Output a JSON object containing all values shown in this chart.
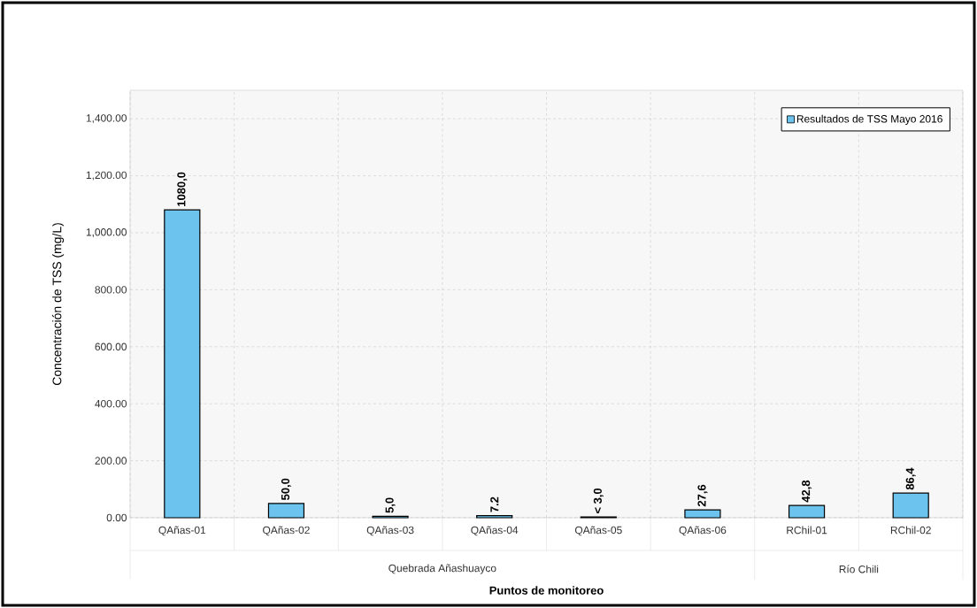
{
  "chart_data": {
    "type": "bar",
    "ylabel": "Concentración de TSS (mg/L)",
    "xlabel": "Puntos de monitoreo",
    "categories": [
      "QAñas-01",
      "QAñas-02",
      "QAñas-03",
      "QAñas-04",
      "QAñas-05",
      "QAñas-06",
      "RChil-01",
      "RChil-02"
    ],
    "series": [
      {
        "name": "Resultados de TSS Mayo 2016",
        "color": "#6cc4ee",
        "values": [
          1080,
          50,
          5,
          7.2,
          3,
          27.6,
          42.8,
          86.4
        ],
        "value_labels": [
          "1080,0",
          "50,0",
          "5,0",
          "7.2",
          "< 3,0",
          "27,6",
          "42,8",
          "86,4"
        ]
      }
    ],
    "ylim": [
      0,
      1500
    ],
    "yticks": [
      {
        "value": 0,
        "label": "0.00"
      },
      {
        "value": 200,
        "label": "200.00"
      },
      {
        "value": 400,
        "label": "400.00"
      },
      {
        "value": 600,
        "label": "600.00"
      },
      {
        "value": 800,
        "label": "800.00"
      },
      {
        "value": 1000,
        "label": "1,000.00"
      },
      {
        "value": 1200,
        "label": "1,200.00"
      },
      {
        "value": 1400,
        "label": "1,400.00"
      }
    ],
    "annotations": [
      "Quebrada Añashuayco",
      "Río Chili"
    ],
    "grid": true,
    "legend": "top right"
  }
}
